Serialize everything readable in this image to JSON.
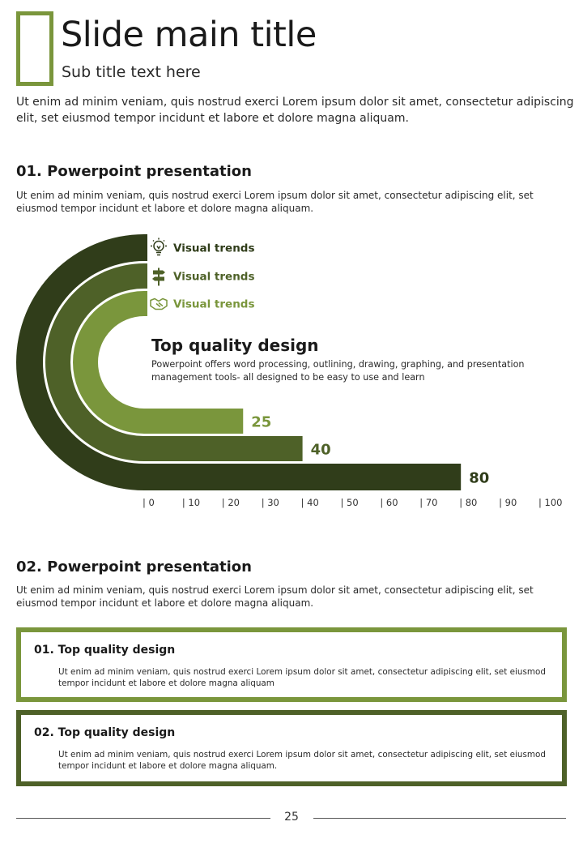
{
  "header": {
    "title": "Slide main title",
    "subtitle": "Sub title text here",
    "intro": "Ut enim ad minim veniam, quis nostrud exerci  Lorem ipsum dolor sit amet, consectetur adipiscing elit, set eiusmod tempor incidunt et labore et dolore magna aliquam."
  },
  "section1": {
    "heading": "01. Powerpoint presentation",
    "text": "Ut enim ad minim veniam, quis nostrud exerci  Lorem ipsum dolor sit amet, consectetur adipiscing elit, set eiusmod tempor incidunt et labore et dolore magna aliquam."
  },
  "chart_data": {
    "type": "bar",
    "orientation": "horizontal-radial",
    "title": "Top quality design",
    "description": "Powerpoint offers word processing, outlining, drawing, graphing, and presentation management tools- all designed to be easy to use and learn",
    "categories": [
      "Visual trends",
      "Visual trends",
      "Visual trends"
    ],
    "values": [
      80,
      40,
      25
    ],
    "icons": [
      "lightbulb-icon",
      "signpost-icon",
      "handshake-icon"
    ],
    "colors": [
      "#303d1a",
      "#4e6128",
      "#7a963c"
    ],
    "xlim": [
      0,
      100
    ],
    "xticks": [
      "| 0",
      "| 10",
      "| 20",
      "| 30",
      "| 40",
      "| 50",
      "| 60",
      "| 70",
      "| 80",
      "| 90",
      "| 100"
    ],
    "grid": false
  },
  "section2": {
    "heading": "02. Powerpoint presentation",
    "text": "Ut enim ad minim veniam, quis nostrud exerci  Lorem ipsum dolor sit amet, consectetur adipiscing elit, set eiusmod tempor incidunt et labore et dolore magna aliquam."
  },
  "cards": [
    {
      "title": "01. Top quality design",
      "text": "Ut enim ad minim veniam, quis nostrud exerci  Lorem ipsum dolor sit amet, consectetur adipiscing elit, set eiusmod tempor incidunt et labore et dolore magna aliquam",
      "border_color": "#7a963c"
    },
    {
      "title": "02. Top quality design",
      "text": "Ut enim ad minim veniam, quis nostrud exerci  Lorem ipsum dolor sit amet, consectetur adipiscing elit, set eiusmod tempor incidunt et labore et dolore magna aliquam.",
      "border_color": "#4e6128"
    }
  ],
  "footer": {
    "page_number": "25"
  }
}
